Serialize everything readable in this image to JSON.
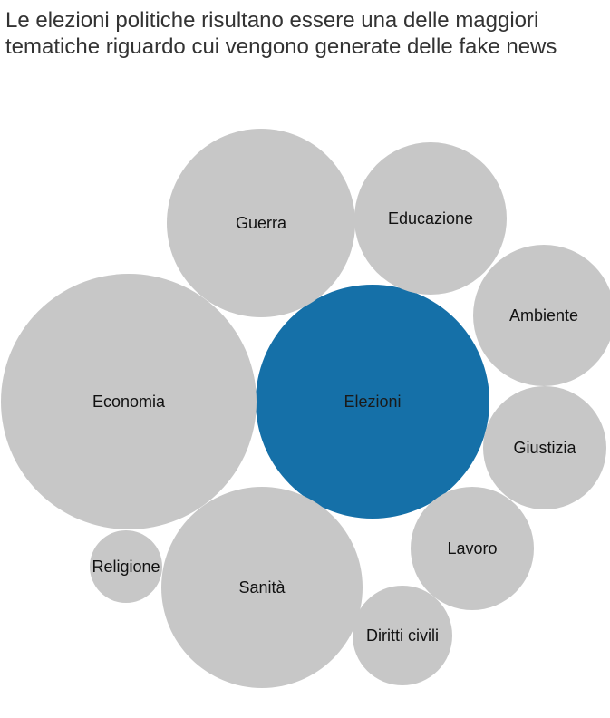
{
  "title": "Le elezioni politiche risultano essere una delle maggiori tematiche riguardo cui vengono generate delle fake news",
  "colors": {
    "highlight": "#1570a8",
    "default": "#c7c7c7",
    "label_default": "#111111",
    "label_highlight": "#1a1a1a"
  },
  "chart_data": {
    "type": "bubble",
    "title": "Le elezioni politiche risultano essere una delle maggiori tematiche riguardo cui vengono generate delle fake news",
    "series": [
      {
        "name": "Elezioni",
        "highlight": true
      },
      {
        "name": "Economia"
      },
      {
        "name": "Guerra"
      },
      {
        "name": "Sanità"
      },
      {
        "name": "Educazione"
      },
      {
        "name": "Ambiente"
      },
      {
        "name": "Giustizia"
      },
      {
        "name": "Lavoro"
      },
      {
        "name": "Diritti civili"
      },
      {
        "name": "Religione"
      }
    ]
  }
}
